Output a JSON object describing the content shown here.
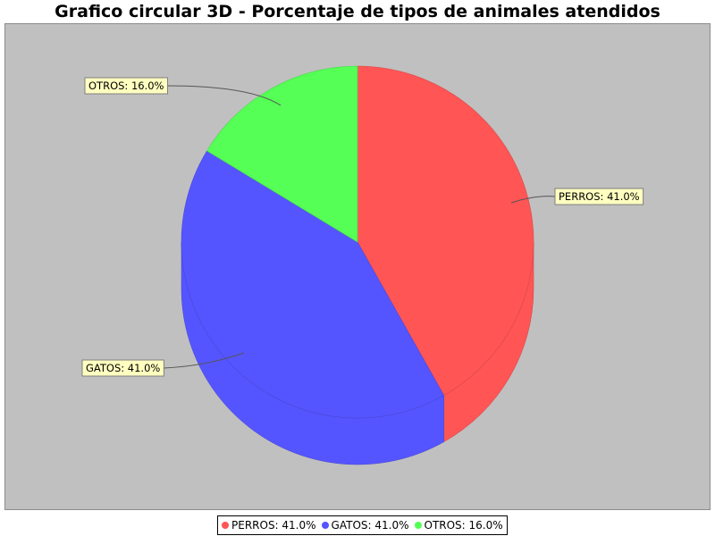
{
  "chart_data": {
    "type": "pie",
    "title": "Grafico circular 3D - Porcentaje de tipos de animales atendidos",
    "slices": [
      {
        "name": "PERROS",
        "value": 41.0,
        "label": "PERROS: 41.0%",
        "color": "#ff5555"
      },
      {
        "name": "GATOS",
        "value": 41.0,
        "label": "GATOS: 41.0%",
        "color": "#5555ff"
      },
      {
        "name": "OTROS",
        "value": 16.0,
        "label": "OTROS: 16.0%",
        "color": "#55ff55"
      }
    ],
    "legend": {
      "placement": "bottom",
      "items": [
        "PERROS: 41.0%",
        "GATOS: 41.0%",
        "OTROS: 16.0%"
      ]
    },
    "background_color": "#c0c0c0",
    "label_box_color": "#ffffc0",
    "three_d": true
  }
}
